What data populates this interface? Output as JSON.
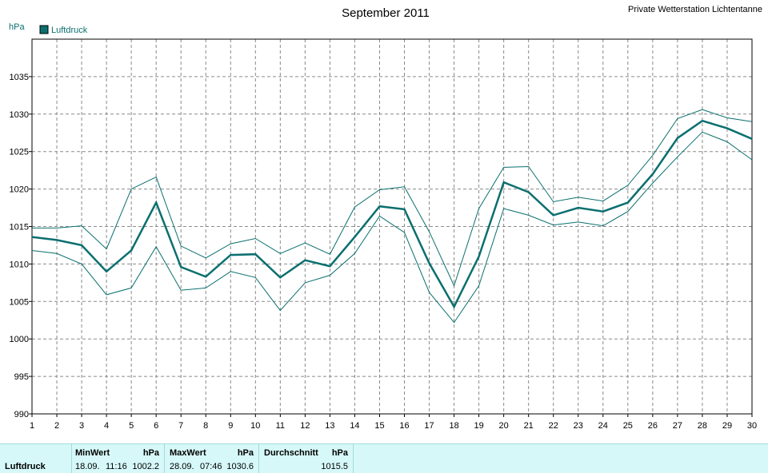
{
  "title": "September 2011",
  "station": "Private Wetterstation Lichtentanne",
  "unit": "hPa",
  "legend": "Luftdruck",
  "colors": {
    "series": "#0b6f6f",
    "grid": "#8a8a8a",
    "stats_bg": "#d6f8f8"
  },
  "chart_data": {
    "type": "line",
    "x": [
      1,
      2,
      3,
      4,
      5,
      6,
      7,
      8,
      9,
      10,
      11,
      12,
      13,
      14,
      15,
      16,
      17,
      18,
      19,
      20,
      21,
      22,
      23,
      24,
      25,
      26,
      27,
      28,
      29,
      30
    ],
    "ylabel": "hPa",
    "ylim": [
      990,
      1040
    ],
    "yticks": [
      990,
      995,
      1000,
      1005,
      1010,
      1015,
      1020,
      1025,
      1030,
      1035
    ],
    "grid": true,
    "legend_placement": "top-left",
    "series": [
      {
        "name": "Luftdruck",
        "role": "mean",
        "values": [
          1013.6,
          1013.2,
          1012.5,
          1009.0,
          1011.8,
          1018.2,
          1009.6,
          1008.3,
          1011.2,
          1011.3,
          1008.2,
          1010.5,
          1009.7,
          1013.6,
          1017.7,
          1017.3,
          1010.1,
          1004.3,
          1011.0,
          1020.9,
          1019.6,
          1016.5,
          1017.5,
          1017.0,
          1018.2,
          1022.0,
          1026.8,
          1029.1,
          1028.1,
          1026.7
        ]
      },
      {
        "role": "max",
        "values": [
          1014.8,
          1014.8,
          1015.1,
          1012.0,
          1020.0,
          1021.6,
          1012.4,
          1010.8,
          1012.7,
          1013.4,
          1011.4,
          1012.8,
          1011.3,
          1017.6,
          1019.9,
          1020.3,
          1014.3,
          1007.1,
          1017.4,
          1022.9,
          1023.0,
          1018.3,
          1018.9,
          1018.4,
          1020.5,
          1024.5,
          1029.4,
          1030.6,
          1029.5,
          1029.0
        ]
      },
      {
        "role": "min",
        "values": [
          1011.8,
          1011.4,
          1010.0,
          1005.9,
          1006.8,
          1012.3,
          1006.5,
          1006.8,
          1009.0,
          1008.2,
          1003.8,
          1007.5,
          1008.5,
          1011.4,
          1016.4,
          1014.2,
          1006.2,
          1002.2,
          1007.1,
          1017.4,
          1016.5,
          1015.2,
          1015.6,
          1015.1,
          1017.0,
          1020.8,
          1024.3,
          1027.6,
          1026.3,
          1023.9
        ]
      }
    ]
  },
  "stats": {
    "row_label": "Luftdruck",
    "min": {
      "header": "MinWert",
      "unit": "hPa",
      "date": "18.09.",
      "time": "11:16",
      "value": "1002.2"
    },
    "max": {
      "header": "MaxWert",
      "unit": "hPa",
      "date": "28.09.",
      "time": "07:46",
      "value": "1030.6"
    },
    "avg": {
      "header": "Durchschnitt",
      "unit": "hPa",
      "value": "1015.5"
    }
  }
}
